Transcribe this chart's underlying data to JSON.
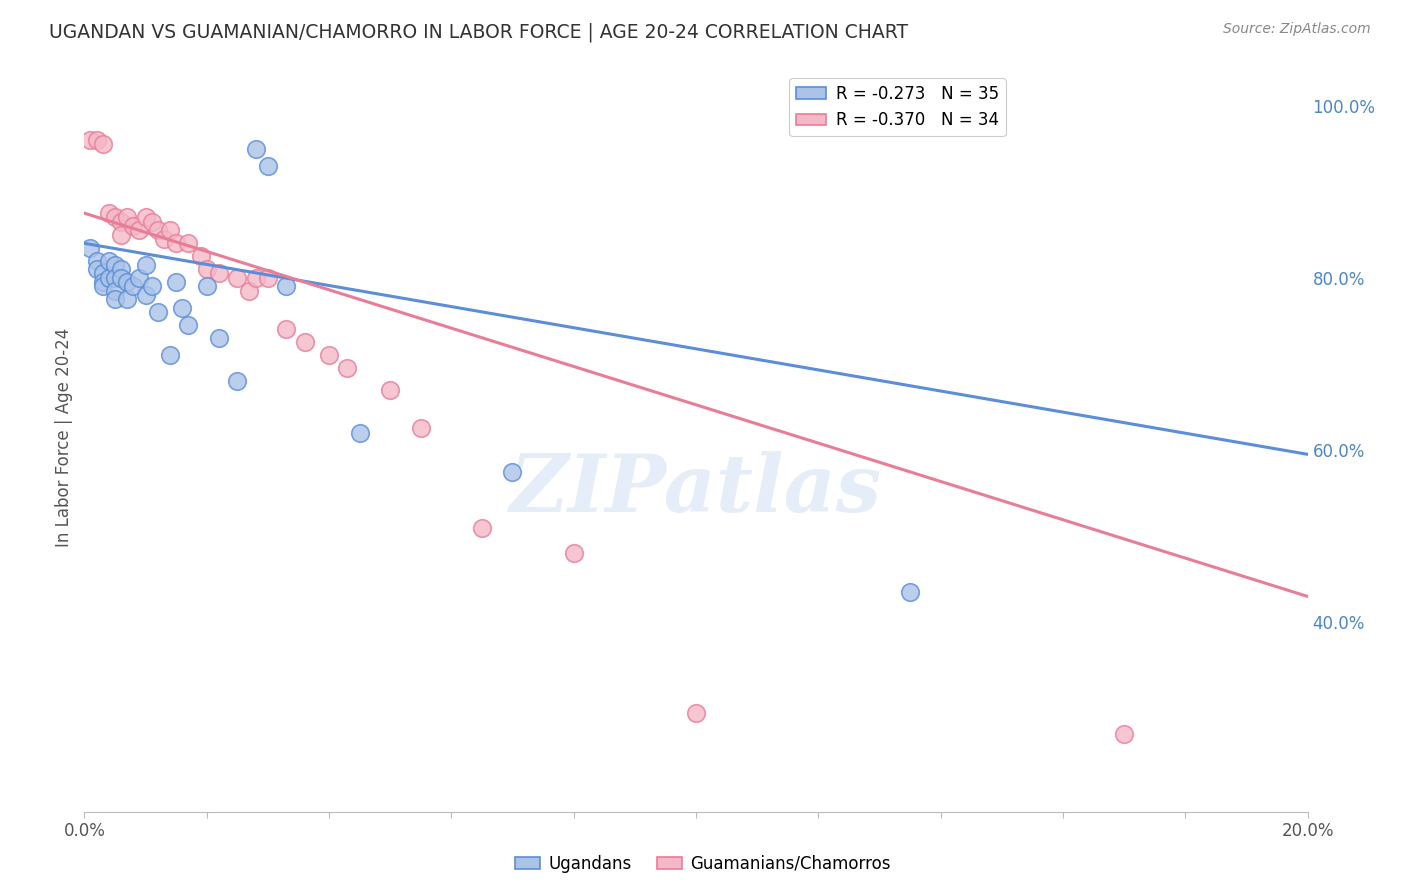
{
  "title": "UGANDAN VS GUAMANIAN/CHAMORRO IN LABOR FORCE | AGE 20-24 CORRELATION CHART",
  "source": "Source: ZipAtlas.com",
  "ylabel": "In Labor Force | Age 20-24",
  "xlim": [
    0.0,
    0.2
  ],
  "ylim": [
    0.18,
    1.05
  ],
  "ytick_labels": [
    "40.0%",
    "60.0%",
    "80.0%",
    "100.0%"
  ],
  "ytick_vals": [
    0.4,
    0.6,
    0.8,
    1.0
  ],
  "xtick_labels": [
    "0.0%",
    "",
    "",
    "",
    "",
    "",
    "",
    "",
    "",
    "",
    "20.0%"
  ],
  "xtick_vals": [
    0.0,
    0.02,
    0.04,
    0.06,
    0.08,
    0.1,
    0.12,
    0.14,
    0.16,
    0.18,
    0.2
  ],
  "legend_entry_blue": "R = -0.273   N = 35",
  "legend_entry_pink": "R = -0.370   N = 34",
  "ugandan_scatter": [
    [
      0.001,
      0.835
    ],
    [
      0.002,
      0.82
    ],
    [
      0.002,
      0.81
    ],
    [
      0.003,
      0.805
    ],
    [
      0.003,
      0.795
    ],
    [
      0.003,
      0.79
    ],
    [
      0.004,
      0.82
    ],
    [
      0.004,
      0.8
    ],
    [
      0.005,
      0.815
    ],
    [
      0.005,
      0.8
    ],
    [
      0.005,
      0.785
    ],
    [
      0.005,
      0.775
    ],
    [
      0.006,
      0.81
    ],
    [
      0.006,
      0.8
    ],
    [
      0.007,
      0.795
    ],
    [
      0.007,
      0.775
    ],
    [
      0.008,
      0.79
    ],
    [
      0.009,
      0.8
    ],
    [
      0.01,
      0.815
    ],
    [
      0.01,
      0.78
    ],
    [
      0.011,
      0.79
    ],
    [
      0.012,
      0.76
    ],
    [
      0.014,
      0.71
    ],
    [
      0.015,
      0.795
    ],
    [
      0.016,
      0.765
    ],
    [
      0.017,
      0.745
    ],
    [
      0.02,
      0.79
    ],
    [
      0.022,
      0.73
    ],
    [
      0.025,
      0.68
    ],
    [
      0.028,
      0.95
    ],
    [
      0.03,
      0.93
    ],
    [
      0.033,
      0.79
    ],
    [
      0.045,
      0.62
    ],
    [
      0.07,
      0.575
    ],
    [
      0.135,
      0.435
    ]
  ],
  "guamanian_scatter": [
    [
      0.001,
      0.96
    ],
    [
      0.002,
      0.96
    ],
    [
      0.003,
      0.955
    ],
    [
      0.004,
      0.875
    ],
    [
      0.005,
      0.87
    ],
    [
      0.006,
      0.865
    ],
    [
      0.006,
      0.85
    ],
    [
      0.007,
      0.87
    ],
    [
      0.008,
      0.86
    ],
    [
      0.009,
      0.855
    ],
    [
      0.01,
      0.87
    ],
    [
      0.011,
      0.865
    ],
    [
      0.012,
      0.855
    ],
    [
      0.013,
      0.845
    ],
    [
      0.014,
      0.855
    ],
    [
      0.015,
      0.84
    ],
    [
      0.017,
      0.84
    ],
    [
      0.019,
      0.825
    ],
    [
      0.02,
      0.81
    ],
    [
      0.022,
      0.805
    ],
    [
      0.025,
      0.8
    ],
    [
      0.027,
      0.785
    ],
    [
      0.028,
      0.8
    ],
    [
      0.03,
      0.8
    ],
    [
      0.033,
      0.74
    ],
    [
      0.036,
      0.725
    ],
    [
      0.04,
      0.71
    ],
    [
      0.043,
      0.695
    ],
    [
      0.05,
      0.67
    ],
    [
      0.055,
      0.625
    ],
    [
      0.065,
      0.51
    ],
    [
      0.08,
      0.48
    ],
    [
      0.1,
      0.295
    ],
    [
      0.17,
      0.27
    ]
  ],
  "ugandan_line_x": [
    0.0,
    0.2
  ],
  "ugandan_line_y": [
    0.84,
    0.595
  ],
  "guamanian_line_x": [
    0.0,
    0.2
  ],
  "guamanian_line_y": [
    0.875,
    0.43
  ],
  "blue_color": "#5b8dd9",
  "pink_color": "#e87d96",
  "blue_fill": "#aac4e8",
  "pink_fill": "#f4b8c8",
  "watermark": "ZIPatlas",
  "background_color": "#ffffff",
  "grid_color": "#cccccc",
  "title_color": "#333333",
  "axis_label_color": "#555555",
  "right_axis_color": "#4d86c4",
  "bottom_spine_color": "#bbbbbb"
}
